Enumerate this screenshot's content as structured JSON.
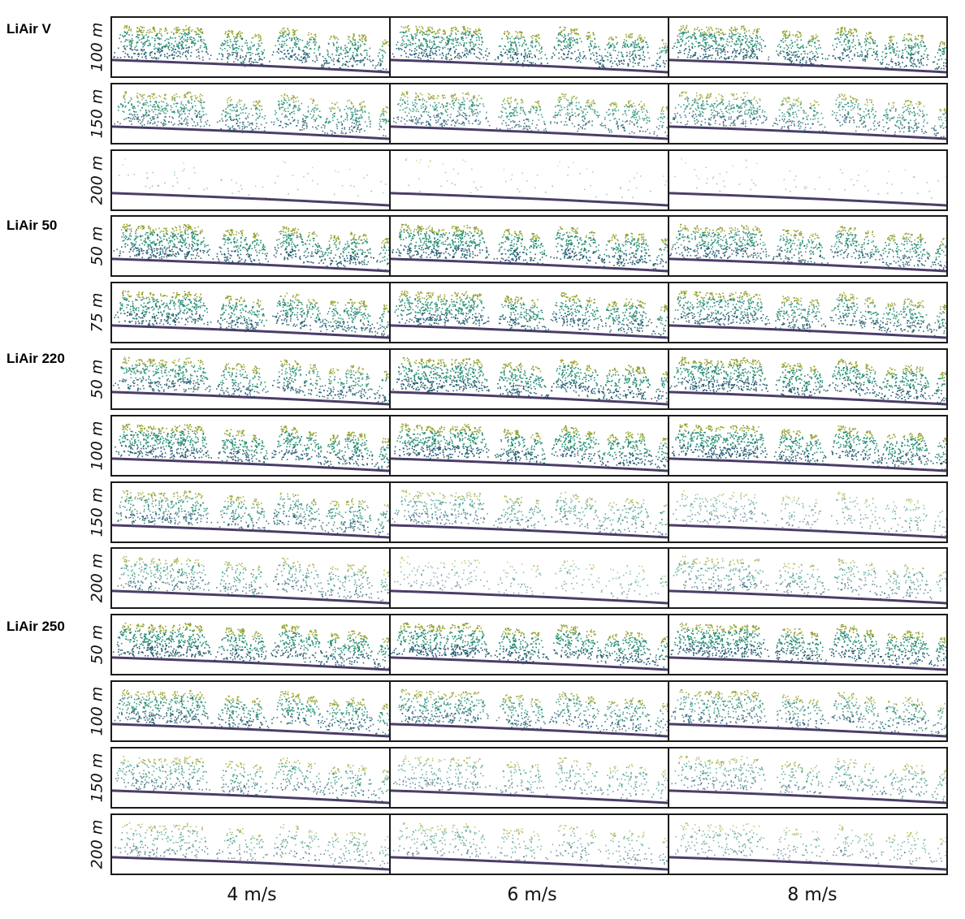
{
  "sensors": [
    {
      "name": "LiAir V",
      "altitudes": [
        "100 m",
        "150 m",
        "200 m"
      ],
      "density": [
        [
          0.95,
          0.95,
          0.95
        ],
        [
          0.8,
          0.75,
          0.75
        ],
        [
          0.06,
          0.05,
          0.05
        ]
      ]
    },
    {
      "name": "LiAir 50",
      "altitudes": [
        "50 m",
        "75 m"
      ],
      "density": [
        [
          1.0,
          1.0,
          0.9
        ],
        [
          0.95,
          0.95,
          0.9
        ]
      ]
    },
    {
      "name": "LiAir 220",
      "altitudes": [
        "50 m",
        "100 m",
        "150 m",
        "200 m"
      ],
      "density": [
        [
          0.85,
          1.0,
          1.0
        ],
        [
          1.0,
          1.0,
          1.0
        ],
        [
          0.75,
          0.55,
          0.35
        ],
        [
          0.6,
          0.25,
          0.5
        ]
      ]
    },
    {
      "name": "LiAir 250",
      "altitudes": [
        "50 m",
        "100 m",
        "150 m",
        "200 m"
      ],
      "density": [
        [
          1.0,
          1.0,
          1.0
        ],
        [
          0.85,
          0.75,
          0.7
        ],
        [
          0.6,
          0.45,
          0.5
        ],
        [
          0.45,
          0.4,
          0.35
        ]
      ]
    }
  ],
  "speeds": [
    "4 m/s",
    "6 m/s",
    "8 m/s"
  ],
  "colors": {
    "canopy_top": "#8fa028",
    "canopy_mid": "#1f8a6e",
    "canopy_low": "#1d5a6e",
    "ground": "#2d1b4e",
    "border": "#1a1a1a"
  }
}
